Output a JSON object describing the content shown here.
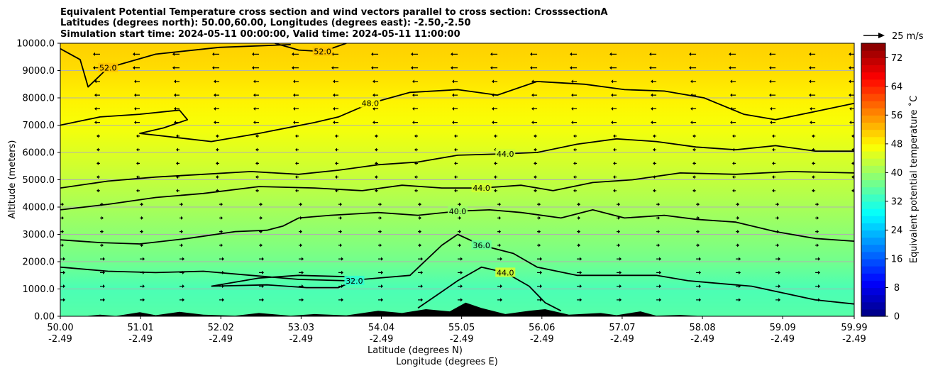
{
  "chart_data": {
    "type": "heatmap",
    "title_lines": [
      "Equivalent Potential Temperature cross section and wind vectors parallel to cross section: CrosssectionA",
      "Latitudes (degrees north): 50.00,60.00, Longitudes (degrees east): -2.50,-2.50",
      "Simulation start time: 2024-05-11 00:00:00, Valid time: 2024-05-11 11:00:00"
    ],
    "ylabel": "Altitude (meters)",
    "xlabel_lines": [
      "Latitude (degrees N)",
      "Longitude (degrees E)"
    ],
    "ylim": [
      0,
      10000
    ],
    "xlim": [
      50.0,
      59.99
    ],
    "y_ticks": [
      "0.00",
      "1000.0",
      "2000.0",
      "3000.0",
      "4000.0",
      "5000.0",
      "6000.0",
      "7000.0",
      "8000.0",
      "9000.0",
      "10000.0"
    ],
    "x_ticks": [
      {
        "lat": "50.00",
        "lon": "-2.49"
      },
      {
        "lat": "51.01",
        "lon": "-2.49"
      },
      {
        "lat": "52.02",
        "lon": "-2.49"
      },
      {
        "lat": "53.03",
        "lon": "-2.49"
      },
      {
        "lat": "54.04",
        "lon": "-2.49"
      },
      {
        "lat": "55.05",
        "lon": "-2.49"
      },
      {
        "lat": "56.06",
        "lon": "-2.49"
      },
      {
        "lat": "57.07",
        "lon": "-2.49"
      },
      {
        "lat": "58.08",
        "lon": "-2.49"
      },
      {
        "lat": "59.09",
        "lon": "-2.49"
      },
      {
        "lat": "59.99",
        "lon": "-2.49"
      }
    ],
    "colorbar": {
      "label": "Equivalent potential temperature ˚C",
      "min": 0,
      "max": 76,
      "ticks": [
        "0",
        "8",
        "16",
        "24",
        "32",
        "40",
        "48",
        "56",
        "64",
        "72"
      ]
    },
    "quiver_key": "25 m/s",
    "theta_e_profile": [
      {
        "alt": 0,
        "value": 35
      },
      {
        "alt": 1000,
        "value": 34
      },
      {
        "alt": 2000,
        "value": 37
      },
      {
        "alt": 3000,
        "value": 39
      },
      {
        "alt": 4000,
        "value": 41
      },
      {
        "alt": 5000,
        "value": 43
      },
      {
        "alt": 6000,
        "value": 45
      },
      {
        "alt": 7000,
        "value": 47
      },
      {
        "alt": 8000,
        "value": 48.5
      },
      {
        "alt": 9000,
        "value": 50
      },
      {
        "alt": 10000,
        "value": 51
      }
    ],
    "contours": [
      {
        "label": "52.0",
        "value": 52,
        "points": [
          [
            50.0,
            9800
          ],
          [
            50.25,
            9400
          ],
          [
            50.35,
            8400
          ],
          [
            50.6,
            9100
          ],
          [
            51.2,
            9600
          ],
          [
            52.0,
            9850
          ],
          [
            52.9,
            9950
          ]
        ]
      },
      {
        "label": "52.0",
        "value": 52,
        "points": [
          [
            52.7,
            10000
          ],
          [
            53.0,
            9750
          ],
          [
            53.3,
            9700
          ],
          [
            53.6,
            10000
          ]
        ]
      },
      {
        "label": "48.0",
        "value": 48,
        "points": [
          [
            50.0,
            7000
          ],
          [
            50.5,
            7300
          ],
          [
            51.0,
            7400
          ],
          [
            51.5,
            7550
          ],
          [
            51.6,
            7200
          ],
          [
            51.3,
            6900
          ],
          [
            51.0,
            6700
          ],
          [
            51.3,
            6600
          ],
          [
            51.9,
            6400
          ],
          [
            52.5,
            6700
          ],
          [
            53.2,
            7100
          ],
          [
            53.5,
            7300
          ],
          [
            53.9,
            7800
          ],
          [
            54.4,
            8200
          ],
          [
            55.0,
            8300
          ],
          [
            55.5,
            8100
          ],
          [
            56.0,
            8600
          ],
          [
            56.6,
            8500
          ],
          [
            57.1,
            8300
          ],
          [
            57.6,
            8250
          ],
          [
            58.1,
            8000
          ],
          [
            58.6,
            7400
          ],
          [
            59.0,
            7200
          ],
          [
            59.5,
            7500
          ],
          [
            59.99,
            7800
          ]
        ]
      },
      {
        "label": "44.0",
        "value": 44,
        "points": [
          [
            50.0,
            4700
          ],
          [
            50.6,
            4950
          ],
          [
            51.2,
            5100
          ],
          [
            51.8,
            5200
          ],
          [
            52.4,
            5300
          ],
          [
            53.0,
            5200
          ],
          [
            53.5,
            5350
          ],
          [
            54.0,
            5550
          ],
          [
            54.5,
            5650
          ],
          [
            55.0,
            5900
          ],
          [
            55.6,
            5950
          ],
          [
            56.0,
            6000
          ],
          [
            56.5,
            6300
          ],
          [
            57.0,
            6500
          ],
          [
            57.5,
            6400
          ],
          [
            58.0,
            6200
          ],
          [
            58.5,
            6100
          ],
          [
            59.0,
            6250
          ],
          [
            59.5,
            6050
          ],
          [
            59.99,
            6050
          ]
        ]
      },
      {
        "label": "44.0",
        "value": 44,
        "points": [
          [
            50.0,
            3900
          ],
          [
            50.6,
            4100
          ],
          [
            51.2,
            4350
          ],
          [
            51.8,
            4500
          ],
          [
            52.5,
            4750
          ],
          [
            53.2,
            4700
          ],
          [
            53.8,
            4600
          ],
          [
            54.3,
            4800
          ],
          [
            54.8,
            4700
          ],
          [
            55.3,
            4700
          ],
          [
            55.8,
            4800
          ],
          [
            56.2,
            4600
          ],
          [
            56.7,
            4900
          ],
          [
            57.2,
            5000
          ],
          [
            57.8,
            5250
          ],
          [
            58.5,
            5200
          ],
          [
            59.2,
            5300
          ],
          [
            59.99,
            5250
          ]
        ]
      },
      {
        "label": "40.0",
        "value": 40,
        "points": [
          [
            50.0,
            2800
          ],
          [
            50.5,
            2700
          ],
          [
            51.0,
            2650
          ],
          [
            51.6,
            2850
          ],
          [
            52.2,
            3100
          ],
          [
            52.6,
            3150
          ],
          [
            52.8,
            3300
          ],
          [
            53.0,
            3600
          ],
          [
            53.4,
            3700
          ],
          [
            54.0,
            3800
          ],
          [
            54.5,
            3700
          ],
          [
            55.0,
            3850
          ],
          [
            55.4,
            3900
          ],
          [
            55.8,
            3800
          ],
          [
            56.3,
            3600
          ],
          [
            56.7,
            3900
          ],
          [
            57.1,
            3600
          ],
          [
            57.6,
            3700
          ],
          [
            58.0,
            3550
          ],
          [
            58.5,
            3450
          ],
          [
            59.0,
            3100
          ],
          [
            59.5,
            2850
          ],
          [
            59.99,
            2750
          ]
        ]
      },
      {
        "label": "36.0",
        "value": 36,
        "points": [
          [
            50.0,
            1800
          ],
          [
            50.6,
            1650
          ],
          [
            51.2,
            1600
          ],
          [
            51.8,
            1650
          ],
          [
            52.4,
            1500
          ],
          [
            53.0,
            1350
          ],
          [
            53.6,
            1300
          ],
          [
            54.0,
            1400
          ],
          [
            54.4,
            1500
          ],
          [
            54.8,
            2600
          ],
          [
            55.0,
            3000
          ],
          [
            55.3,
            2600
          ],
          [
            55.7,
            2300
          ],
          [
            56.0,
            1800
          ],
          [
            56.5,
            1500
          ],
          [
            57.0,
            1500
          ],
          [
            57.5,
            1500
          ],
          [
            57.9,
            1300
          ],
          [
            58.3,
            1200
          ],
          [
            58.7,
            1100
          ],
          [
            59.1,
            850
          ],
          [
            59.5,
            600
          ],
          [
            59.99,
            450
          ]
        ]
      },
      {
        "label": "32.0",
        "value": 32,
        "points": [
          [
            51.9,
            1100
          ],
          [
            52.6,
            1150
          ],
          [
            53.1,
            1050
          ],
          [
            53.5,
            1050
          ],
          [
            53.7,
            1300
          ],
          [
            53.6,
            1450
          ],
          [
            53.0,
            1500
          ],
          [
            52.5,
            1400
          ],
          [
            51.9,
            1100
          ]
        ]
      },
      {
        "label": "44.0",
        "value": 44,
        "points": [
          [
            54.5,
            300
          ],
          [
            54.75,
            800
          ],
          [
            55.0,
            1300
          ],
          [
            55.3,
            1800
          ],
          [
            55.6,
            1600
          ],
          [
            55.9,
            1100
          ],
          [
            56.1,
            500
          ],
          [
            56.3,
            200
          ]
        ]
      }
    ]
  }
}
